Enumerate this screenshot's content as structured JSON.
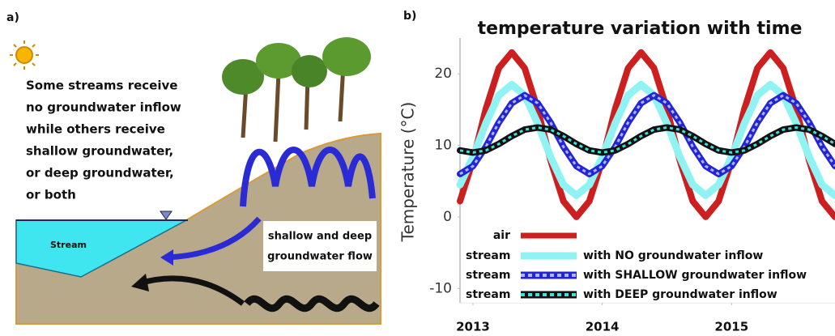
{
  "panel_a": {
    "label": "a)",
    "text": [
      "Some streams receive",
      "no groundwater inflow",
      "while others receive",
      "shallow groundwater,",
      "or deep groundwater,",
      "or both"
    ],
    "stream_label": "Stream",
    "flow_label": [
      "shallow and deep",
      "groundwater flow"
    ]
  },
  "chart_data": {
    "type": "line",
    "panel_label": "b)",
    "title": "temperature variation with time",
    "y_label": "Temperature (°C)",
    "x": [
      2012.9,
      2013.0,
      2013.1,
      2013.2,
      2013.3,
      2013.4,
      2013.5,
      2013.6,
      2013.7,
      2013.8,
      2013.9,
      2014.0,
      2014.1,
      2014.2,
      2014.3,
      2014.4,
      2014.5,
      2014.6,
      2014.7,
      2014.8,
      2014.9,
      2015.0,
      2015.1,
      2015.2,
      2015.3,
      2015.4,
      2015.5,
      2015.6,
      2015.7,
      2015.8
    ],
    "series": [
      {
        "name": "air",
        "color": "#cc1f1f",
        "values": [
          2.2,
          7.9,
          15.1,
          20.8,
          23,
          20.8,
          15.1,
          7.9,
          2.2,
          0,
          2.2,
          7.9,
          15.1,
          20.8,
          23,
          20.8,
          15.1,
          7.9,
          2.2,
          0,
          2.2,
          7.9,
          15.1,
          20.8,
          23,
          20.8,
          15.1,
          7.9,
          2.2,
          0
        ]
      },
      {
        "name": "with NO groundwater inflow",
        "prefix": "stream",
        "color": "#8ff3f3",
        "values": [
          4.5,
          8.4,
          13.1,
          17.0,
          18.5,
          17.0,
          13.1,
          8.4,
          4.5,
          3.0,
          4.5,
          8.4,
          13.1,
          17.0,
          18.5,
          17.0,
          13.1,
          8.4,
          4.5,
          3.0,
          4.5,
          8.4,
          13.1,
          17.0,
          18.5,
          17.0,
          13.1,
          8.4,
          4.5,
          3.0
        ]
      },
      {
        "name": "with SHALLOW groundwater inflow",
        "prefix": "stream",
        "color": "#2424d6",
        "dash_color": "#a8b8ff",
        "values": [
          6,
          7.1,
          9.8,
          13.2,
          15.9,
          17,
          15.9,
          13.2,
          9.8,
          7.1,
          6,
          7.1,
          9.8,
          13.2,
          15.9,
          17,
          15.9,
          13.2,
          9.8,
          7.1,
          6,
          7.1,
          9.8,
          13.2,
          15.9,
          17,
          15.9,
          13.2,
          9.8,
          7.1
        ]
      },
      {
        "name": "with DEEP groundwater inflow",
        "prefix": "stream",
        "color": "#111111",
        "dash_color": "#3fe0d8",
        "values": [
          9.3,
          9.0,
          9.3,
          10.2,
          11.3,
          12.2,
          12.5,
          12.2,
          11.3,
          10.2,
          9.3,
          9.0,
          9.3,
          10.2,
          11.3,
          12.2,
          12.5,
          12.2,
          11.3,
          10.2,
          9.3,
          9.0,
          9.3,
          10.2,
          11.3,
          12.2,
          12.5,
          12.2,
          11.3,
          10.2
        ]
      }
    ],
    "xlim": [
      2012.9,
      2015.8
    ],
    "xticks": [
      2013,
      2014,
      2015
    ],
    "ylim": [
      -12,
      25
    ],
    "yticks": [
      -10,
      0,
      10,
      20
    ],
    "grid": false
  }
}
